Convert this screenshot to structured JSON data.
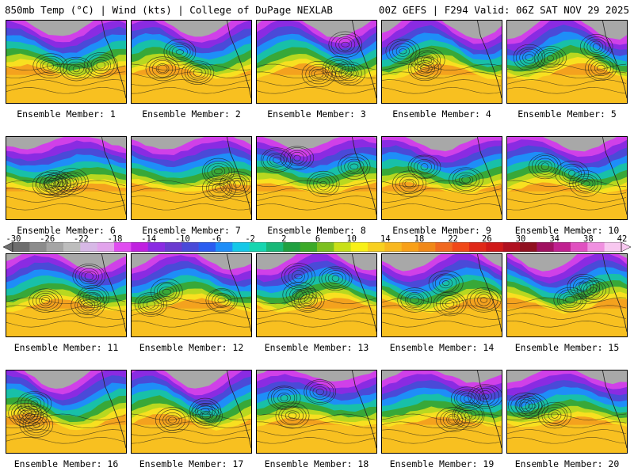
{
  "header": {
    "title_left": "850mb Temp (°C) | Wind (kts) | College of DuPage NEXLAB",
    "title_right": "00Z GEFS | F294 Valid: 06Z SAT NOV 29 2025"
  },
  "members": [
    {
      "label": "Ensemble Member: 1"
    },
    {
      "label": "Ensemble Member: 2"
    },
    {
      "label": "Ensemble Member: 3"
    },
    {
      "label": "Ensemble Member: 4"
    },
    {
      "label": "Ensemble Member: 5"
    },
    {
      "label": "Ensemble Member: 6"
    },
    {
      "label": "Ensemble Member: 7"
    },
    {
      "label": "Ensemble Member: 8"
    },
    {
      "label": "Ensemble Member: 9"
    },
    {
      "label": "Ensemble Member: 10"
    },
    {
      "label": "Ensemble Member: 11"
    },
    {
      "label": "Ensemble Member: 12"
    },
    {
      "label": "Ensemble Member: 13"
    },
    {
      "label": "Ensemble Member: 14"
    },
    {
      "label": "Ensemble Member: 15"
    },
    {
      "label": "Ensemble Member: 16"
    },
    {
      "label": "Ensemble Member: 17"
    },
    {
      "label": "Ensemble Member: 18"
    },
    {
      "label": "Ensemble Member: 19"
    },
    {
      "label": "Ensemble Member: 20"
    }
  ],
  "colorbar": {
    "tick_labels": [
      "-30",
      "-26",
      "-22",
      "-18",
      "-14",
      "-10",
      "-6",
      "-2",
      "2",
      "6",
      "10",
      "14",
      "18",
      "22",
      "26",
      "30",
      "34",
      "38",
      "42"
    ],
    "colors": [
      "#6e6e6e",
      "#8c8c8c",
      "#a5a5a5",
      "#bdbdbd",
      "#d7b8e6",
      "#e2a4ec",
      "#e04cf0",
      "#c020e0",
      "#8a2be2",
      "#6a3ad0",
      "#4a4ad8",
      "#2a5cf0",
      "#1e8ef8",
      "#14c8e8",
      "#16d6b0",
      "#18b878",
      "#1fa040",
      "#3caa28",
      "#7cc020",
      "#c8e018",
      "#f8f018",
      "#f8d020",
      "#f8b820",
      "#f8a018",
      "#f08818",
      "#f06820",
      "#f04818",
      "#e02818",
      "#d01818",
      "#b01020",
      "#901020",
      "#a01060",
      "#c02090",
      "#e050c0",
      "#f090e0",
      "#f8c8f0"
    ]
  }
}
